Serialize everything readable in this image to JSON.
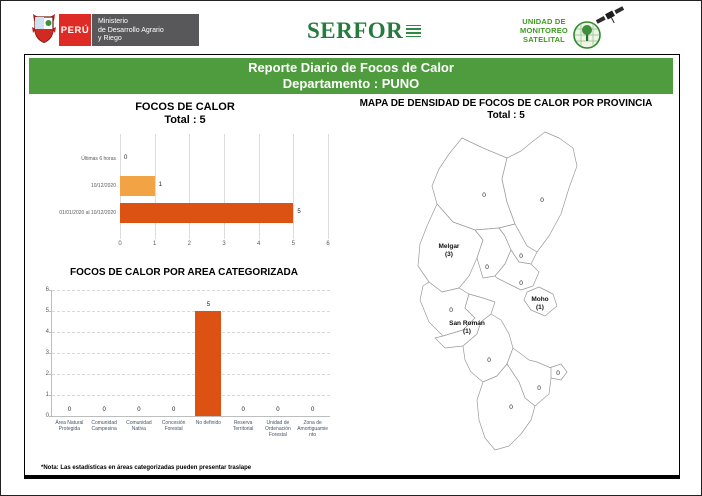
{
  "header": {
    "peru_label": "PERÚ",
    "ministry_lines": [
      "Ministerio",
      "de Desarrollo Agrario",
      "y Riego"
    ],
    "serfor_text": "SERFOR",
    "ums_line1": "UNIDAD DE",
    "ums_line2": "MONITOREO",
    "ums_line3": "SATELITAL"
  },
  "title_bar": {
    "line1": "Reporte Diario de Focos de Calor",
    "line2": "Departamento : PUNO"
  },
  "footnote": "*Nota: Las estadísticas en áreas categorizadas pueden presentar traslape",
  "colors": {
    "title_bar_green": "#4E9C3E",
    "peru_red": "#DF2B26",
    "ministry_gray": "#58585A",
    "serfor_green": "#267A3E",
    "ums_green": "#3C9B1C",
    "bar_light_orange": "#F2A444",
    "bar_dark_orange": "#DC5212"
  },
  "chart_data": [
    {
      "type": "bar",
      "orientation": "horizontal",
      "title": "FOCOS DE CALOR",
      "subtitle": "Total : 5",
      "total": 5,
      "categories": [
        "Últimas 6 horas",
        "10/12/2020",
        "01/01/2020 al 10/12/2020"
      ],
      "values": [
        0,
        1,
        5
      ],
      "bar_colors": [
        "#F2A444",
        "#F2A444",
        "#DC5212"
      ],
      "xlim": [
        0,
        6
      ],
      "xticks": [
        0,
        1,
        2,
        3,
        4,
        5,
        6
      ],
      "grid": true,
      "legend_position": "none"
    },
    {
      "type": "bar",
      "orientation": "vertical",
      "title": "FOCOS DE CALOR POR AREA CATEGORIZADA",
      "categories": [
        "Área Natural Protegida",
        "Comunidad Campesina",
        "Comunidad Nativa",
        "Concesión Forestal",
        "No definido",
        "Reserva Territorial",
        "Unidad de Ordenación Forestal",
        "Zona de Amortiguamiento"
      ],
      "values": [
        0,
        0,
        0,
        0,
        5,
        0,
        0,
        0
      ],
      "bar_color": "#DC5212",
      "ylim": [
        0,
        6
      ],
      "yticks": [
        0,
        1,
        2,
        3,
        4,
        5,
        6
      ],
      "grid": true,
      "legend_position": "none"
    }
  ],
  "map": {
    "title": "MAPA DE DENSIDAD DE FOCOS DE CALOR POR PROVINCIA",
    "subtitle": "Total : 5",
    "total": 5,
    "zero_label": "0",
    "labeled_provinces": [
      {
        "name": "Melgar",
        "value": 3,
        "value_label": "(3)",
        "fill": "#DD5514"
      },
      {
        "name": "Moho",
        "value": 1,
        "value_label": "(1)",
        "fill": "#EE8434"
      },
      {
        "name": "San Román",
        "value": 1,
        "value_label": "(1)",
        "fill": "#F5B45B"
      }
    ]
  }
}
